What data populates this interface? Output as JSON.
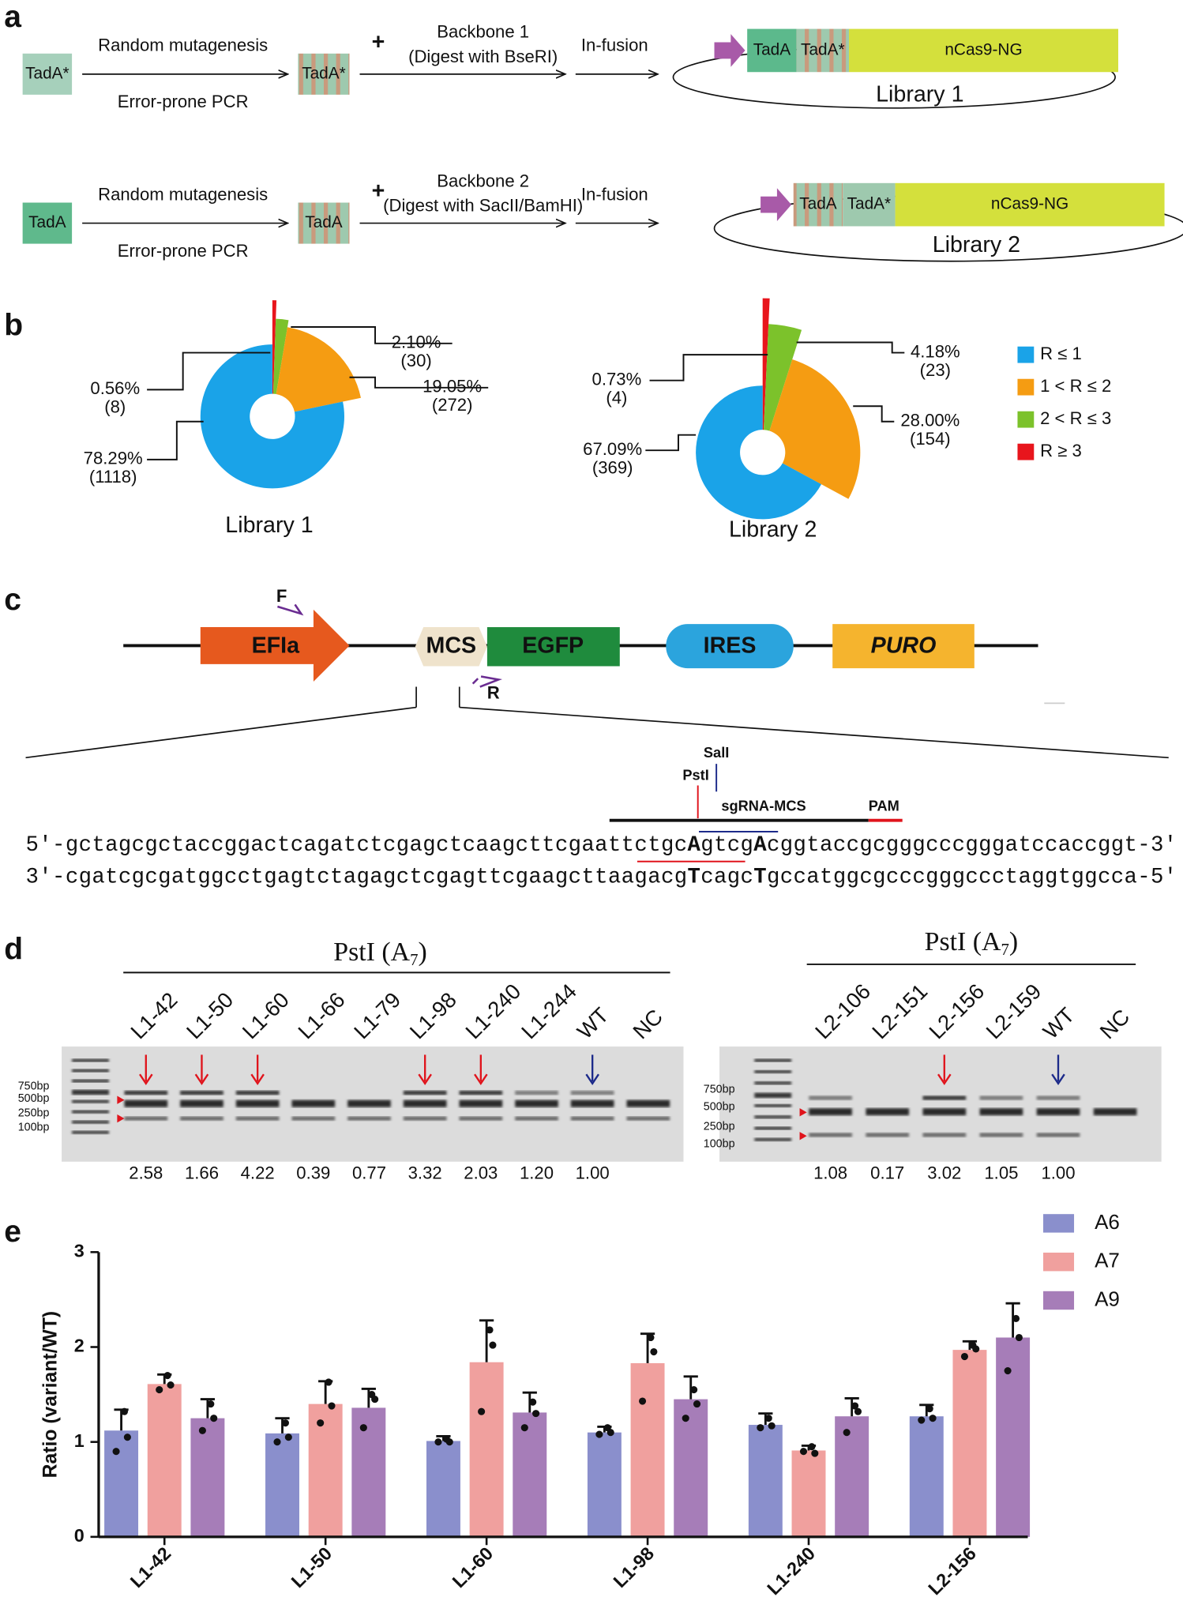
{
  "panel_labels": [
    "a",
    "b",
    "c",
    "d",
    "e"
  ],
  "panel_a": {
    "rows": [
      {
        "input": "TadA*",
        "step": "Random mutagenesis",
        "method": "Error-prone PCR",
        "product": "TadA*",
        "plus": "+",
        "backbone": "Backbone 1",
        "digest": "(Digest with BseRI)",
        "fusion": "In-fusion",
        "plasmid": [
          "TadA",
          "TadA*",
          "nCas9-NG"
        ],
        "library": "Library 1"
      },
      {
        "input": "TadA",
        "step": "Random mutagenesis",
        "method": "Error-prone PCR",
        "product": "TadA",
        "plus": "+",
        "backbone": "Backbone 2",
        "digest": "(Digest with SacII/BamHI)",
        "fusion": "In-fusion",
        "plasmid": [
          "TadA",
          "TadA*",
          "nCas9-NG"
        ],
        "library": "Library 2"
      }
    ]
  },
  "legend": {
    "labels": [
      "R ≤ 1",
      "1 < R ≤ 2",
      "2 < R ≤ 3",
      "R ≥ 3"
    ],
    "colors": [
      "#1aa3e8",
      "#f59c12",
      "#7cc22b",
      "#e8151c"
    ]
  },
  "chart_data": [
    {
      "type": "pie",
      "title": "Library 1",
      "values": [
        78.29,
        19.05,
        2.1,
        0.56
      ],
      "value_labels": [
        "78.29%",
        "19.05%",
        "2.10%",
        "0.56%"
      ],
      "count_labels": [
        "(1118)",
        "(272)",
        "(30)",
        "(8)"
      ]
    },
    {
      "type": "pie",
      "title": "Library 2",
      "values": [
        67.09,
        28.0,
        4.18,
        0.73
      ],
      "value_labels": [
        "67.09%",
        "28.00%",
        "4.18%",
        "0.73%"
      ],
      "count_labels": [
        "(369)",
        "(154)",
        "(23)",
        "(4)"
      ]
    },
    {
      "type": "bar",
      "ylabel": "Ratio (variant/WT)",
      "categories": [
        "L1-42",
        "L1-50",
        "L1-60",
        "L1-98",
        "L1-240",
        "L2-156"
      ],
      "ylim": [
        0,
        3
      ],
      "yticks": [
        0,
        1,
        2,
        3
      ],
      "legend": "upper right",
      "series": [
        {
          "name": "A6",
          "color": "#8a8fcc",
          "values": [
            1.12,
            1.09,
            1.01,
            1.1,
            1.18,
            1.27
          ],
          "errors": [
            0.22,
            0.16,
            0.05,
            0.06,
            0.12,
            0.12
          ],
          "points": [
            [
              1.32,
              1.05,
              0.9
            ],
            [
              1.2,
              1.05,
              1.0
            ],
            [
              1.03,
              1.0,
              1.0
            ],
            [
              1.15,
              1.1,
              1.08
            ],
            [
              1.25,
              1.17,
              1.15
            ],
            [
              1.35,
              1.25,
              1.23
            ]
          ]
        },
        {
          "name": "A7",
          "color": "#f0a09e",
          "values": [
            1.61,
            1.4,
            1.84,
            1.83,
            0.91,
            1.97
          ],
          "errors": [
            0.1,
            0.24,
            0.44,
            0.31,
            0.05,
            0.09
          ],
          "points": [
            [
              1.7,
              1.6,
              1.55
            ],
            [
              1.63,
              1.38,
              1.2
            ],
            [
              2.18,
              2.02,
              1.32
            ],
            [
              2.1,
              1.95,
              1.43
            ],
            [
              0.95,
              0.88,
              0.9
            ],
            [
              2.02,
              1.98,
              1.9
            ]
          ]
        },
        {
          "name": "A9",
          "color": "#a67db8",
          "values": [
            1.25,
            1.36,
            1.31,
            1.45,
            1.27,
            2.1
          ],
          "errors": [
            0.2,
            0.2,
            0.21,
            0.24,
            0.19,
            0.36
          ],
          "points": [
            [
              1.4,
              1.25,
              1.12
            ],
            [
              1.5,
              1.45,
              1.15
            ],
            [
              1.42,
              1.3,
              1.15
            ],
            [
              1.55,
              1.4,
              1.25
            ],
            [
              1.38,
              1.32,
              1.1
            ],
            [
              2.3,
              2.1,
              1.75
            ]
          ]
        }
      ]
    }
  ],
  "panel_c": {
    "primers": [
      "F",
      "R"
    ],
    "elements": [
      "EFIa",
      "MCS",
      "EGFP",
      "IRES",
      "PURO"
    ],
    "sites": [
      "SalI",
      "PstI"
    ],
    "sgrna": "sgRNA-MCS",
    "pam": "PAM",
    "top_strand": [
      "5'-gctagcgctaccggactcagatctcgagctcaagcttcgaattctgc",
      "A",
      "gtcg",
      "A",
      "cggtaccgcgggcccgggatccaccggt-3'"
    ],
    "bottom_strand": [
      "3'-cgatcgcgatggcctgagtctagagctcgagttcgaagcttaagacg",
      "T",
      "cagc",
      "T",
      "gccatggcgcccgggccctaggtggcca-5'"
    ]
  },
  "panel_d": {
    "gels": [
      {
        "enzyme": "PstI (A",
        "subscript": "7",
        "close": ")",
        "ladder": [
          "750bp",
          "500bp",
          "250bp",
          "100bp"
        ],
        "lanes": [
          "L1-42",
          "L1-50",
          "L1-60",
          "L1-66",
          "L1-79",
          "L1-98",
          "L1-240",
          "L1-244",
          "WT",
          "NC"
        ],
        "ratios": [
          "2.58",
          "1.66",
          "4.22",
          "0.39",
          "0.77",
          "3.32",
          "2.03",
          "1.20",
          "1.00"
        ]
      },
      {
        "enzyme": "PstI (A",
        "subscript": "7",
        "close": ")",
        "ladder": [
          "750bp",
          "500bp",
          "250bp",
          "100bp"
        ],
        "lanes": [
          "L2-106",
          "L2-151",
          "L2-156",
          "L2-159",
          "WT",
          "NC"
        ],
        "ratios": [
          "1.08",
          "0.17",
          "3.02",
          "1.05",
          "1.00"
        ]
      }
    ]
  }
}
